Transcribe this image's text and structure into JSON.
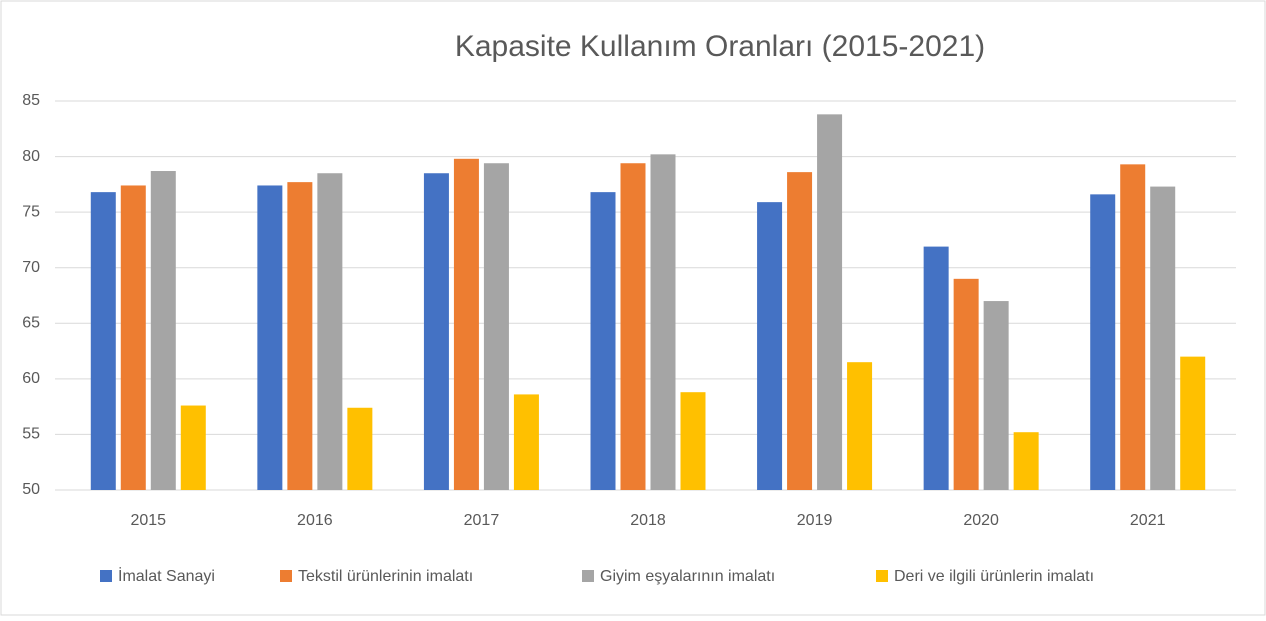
{
  "chart_data": {
    "type": "bar",
    "title": "Kapasite Kullanım Oranları (2015-2021)",
    "categories": [
      "2015",
      "2016",
      "2017",
      "2018",
      "2019",
      "2020",
      "2021"
    ],
    "series": [
      {
        "name": "İmalat Sanayi",
        "color": "#4472c4",
        "values": [
          76.8,
          77.4,
          78.5,
          76.8,
          75.9,
          71.9,
          76.6
        ]
      },
      {
        "name": "Tekstil ürünlerinin imalatı",
        "color": "#ed7d31",
        "values": [
          77.4,
          77.7,
          79.8,
          79.4,
          78.6,
          69.0,
          79.3
        ]
      },
      {
        "name": "Giyim eşyalarının imalatı",
        "color": "#a5a5a5",
        "values": [
          78.7,
          78.5,
          79.4,
          80.2,
          83.8,
          67.0,
          77.3
        ]
      },
      {
        "name": "Deri ve ilgili ürünlerin imalatı",
        "color": "#ffc000",
        "values": [
          57.6,
          57.4,
          58.6,
          58.8,
          61.5,
          55.2,
          62.0
        ]
      }
    ],
    "ylim": [
      50,
      85
    ],
    "yticks": [
      50,
      55,
      60,
      65,
      70,
      75,
      80,
      85
    ],
    "grid": true,
    "legend": "bottom"
  }
}
